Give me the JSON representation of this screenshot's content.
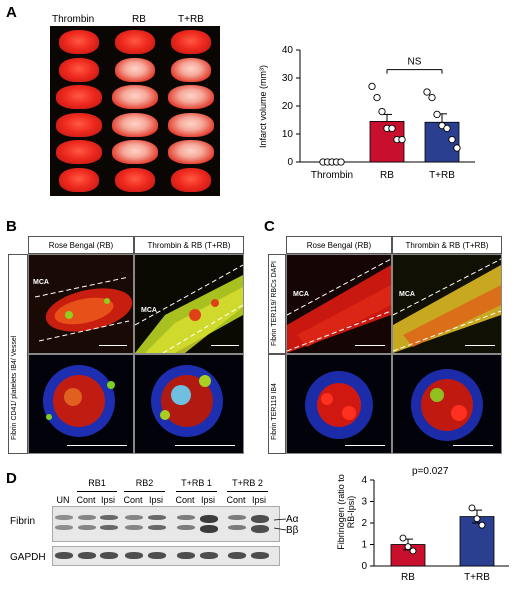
{
  "panelA": {
    "letter": "A",
    "columns": [
      "Thrombin",
      "RB",
      "T+RB"
    ],
    "chart_data": {
      "type": "bar",
      "categories": [
        "Thrombin",
        "RB",
        "T+RB"
      ],
      "values": [
        0,
        14.5,
        14.2
      ],
      "errors": [
        0,
        2.5,
        3.0
      ],
      "points": [
        [
          0,
          0,
          0,
          0,
          0
        ],
        [
          27,
          23,
          18,
          12,
          12,
          8,
          8
        ],
        [
          25,
          23,
          17,
          13,
          12,
          8,
          5
        ]
      ],
      "colors": [
        "#ffffff",
        "#c8102e",
        "#2a3f8f"
      ],
      "ylabel": "Infarct volume (mm³)",
      "yticks": [
        "0",
        "10",
        "20",
        "30",
        "40"
      ],
      "ylim": [
        0,
        40
      ],
      "significance": "NS"
    }
  },
  "panelB": {
    "letter": "B",
    "headers": [
      "Rose Bengal (RB)",
      "Thrombin & RB (T+RB)"
    ],
    "side_label": "Fibrin CD41/ platelets IB4/ Vessel",
    "vessel_label": "MCA"
  },
  "panelC": {
    "letter": "C",
    "headers": [
      "Rose Bengal (RB)",
      "Thrombin & RB (T+RB)"
    ],
    "side_label_top": "Fibrin TER119/ RBCs DAPI",
    "side_label_bottom": "Fibrin TER119 IB4",
    "vessel_label": "MCA"
  },
  "panelD": {
    "letter": "D",
    "groups": [
      "RB1",
      "RB2",
      "T+RB 1",
      "T+RB 2"
    ],
    "lanes": [
      "UN",
      "Cont",
      "Ipsi",
      "Cont",
      "Ipsi",
      "Cont",
      "Ipsi",
      "Cont",
      "Ipsi"
    ],
    "row_labels": [
      "Fibrin",
      "GAPDH"
    ],
    "band_labels": [
      "Aα",
      "Bβ"
    ],
    "pvalue": "p=0.027",
    "chart_data": {
      "type": "bar",
      "categories": [
        "RB",
        "T+RB"
      ],
      "values": [
        1.0,
        2.3
      ],
      "errors": [
        0.25,
        0.3
      ],
      "points": [
        [
          1.3,
          0.9,
          0.7
        ],
        [
          2.7,
          2.2,
          1.9
        ]
      ],
      "colors": [
        "#c8102e",
        "#2a3f8f"
      ],
      "ylabel": "Fibrinogen (ratio to RB-Ipsi)",
      "yticks": [
        "0",
        "1",
        "2",
        "3",
        "4"
      ],
      "ylim": [
        0,
        4
      ]
    }
  }
}
